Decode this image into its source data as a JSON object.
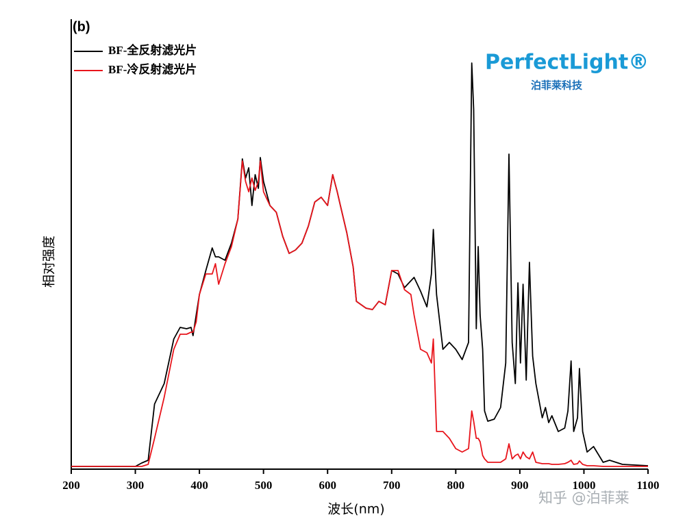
{
  "chart_data": {
    "type": "line",
    "title": "(b)",
    "x_label": "波长(nm)",
    "y_label": "相对强度",
    "logo_text": "PerfectLight®",
    "logo_subtext": "泊菲莱科技",
    "watermark": "知乎 @泊菲莱",
    "legend": "upper left",
    "x": [
      200,
      300,
      310,
      320,
      330,
      345,
      360,
      370,
      380,
      387,
      390,
      395,
      400,
      410,
      420,
      425,
      430,
      440,
      450,
      460,
      467,
      472,
      477,
      482,
      487,
      492,
      495,
      500,
      510,
      520,
      530,
      540,
      550,
      560,
      570,
      580,
      590,
      600,
      608,
      615,
      620,
      630,
      640,
      645,
      660,
      670,
      680,
      690,
      700,
      710,
      720,
      730,
      735,
      745,
      755,
      762,
      765,
      770,
      780,
      790,
      800,
      810,
      820,
      825,
      828,
      832,
      835,
      838,
      842,
      845,
      850,
      860,
      870,
      878,
      883,
      888,
      893,
      897,
      901,
      905,
      910,
      915,
      920,
      925,
      935,
      940,
      945,
      950,
      960,
      970,
      975,
      980,
      984,
      990,
      993,
      998,
      1005,
      1015,
      1030,
      1040,
      1060,
      1100
    ],
    "series": [
      {
        "name": "BF-全反射滤光片",
        "color": "#000000",
        "values": [
          4,
          4,
          9,
          13,
          95,
          125,
          190,
          207,
          205,
          207,
          195,
          225,
          255,
          290,
          323,
          310,
          310,
          305,
          330,
          365,
          453,
          425,
          440,
          385,
          430,
          410,
          455,
          420,
          385,
          375,
          340,
          315,
          320,
          330,
          355,
          390,
          397,
          385,
          430,
          405,
          385,
          345,
          295,
          245,
          235,
          233,
          245,
          240,
          290,
          285,
          265,
          275,
          280,
          260,
          237,
          285,
          350,
          255,
          175,
          185,
          175,
          160,
          185,
          593,
          525,
          205,
          325,
          225,
          175,
          85,
          70,
          73,
          90,
          155,
          460,
          185,
          125,
          272,
          155,
          270,
          130,
          302,
          165,
          125,
          75,
          90,
          68,
          78,
          55,
          60,
          85,
          158,
          55,
          75,
          147,
          55,
          25,
          33,
          10,
          13,
          7,
          5
        ]
      },
      {
        "name": "BF-冷反射滤光片",
        "color": "#e8141b",
        "values": [
          4,
          4,
          4,
          7,
          45,
          105,
          175,
          197,
          197,
          200,
          200,
          215,
          255,
          285,
          285,
          300,
          270,
          300,
          325,
          365,
          450,
          420,
          405,
          425,
          407,
          420,
          450,
          405,
          385,
          375,
          340,
          315,
          320,
          330,
          355,
          390,
          397,
          385,
          430,
          405,
          385,
          345,
          295,
          245,
          235,
          233,
          245,
          240,
          290,
          290,
          262,
          255,
          225,
          175,
          170,
          155,
          190,
          55,
          55,
          45,
          30,
          25,
          30,
          85,
          70,
          45,
          45,
          40,
          20,
          15,
          10,
          10,
          10,
          15,
          37,
          15,
          20,
          22,
          15,
          25,
          18,
          15,
          25,
          10,
          8,
          8,
          8,
          7,
          7,
          8,
          10,
          13,
          7,
          8,
          12,
          7,
          5,
          5,
          4,
          4,
          4,
          4
        ]
      }
    ],
    "xlim": [
      200,
      1100
    ],
    "ylim": [
      0,
      657
    ],
    "xticks": [
      200,
      300,
      400,
      500,
      600,
      700,
      800,
      900,
      1000,
      1100
    ]
  }
}
